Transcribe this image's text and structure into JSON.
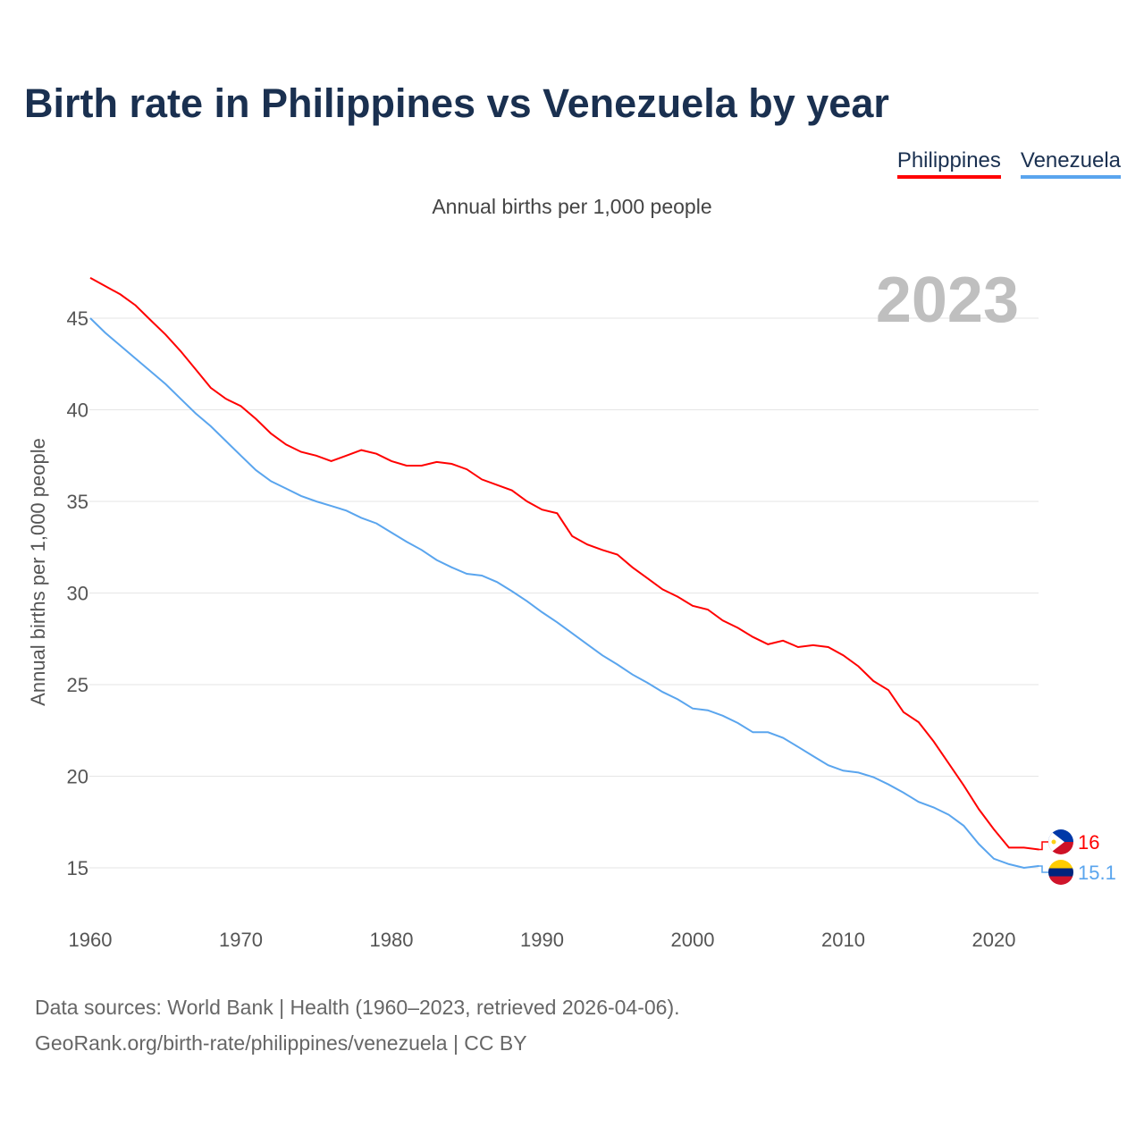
{
  "title": "Birth rate in Philippines vs Venezuela by year",
  "subtitle": "Annual births per 1,000 people",
  "legend": [
    {
      "label": "Philippines",
      "color": "#ff0000"
    },
    {
      "label": "Venezuela",
      "color": "#5aa5ee"
    }
  ],
  "year_watermark": "2023",
  "source_line1": "Data sources: World Bank | Health (1960–2023, retrieved 2026-04-06).",
  "source_line2": "GeoRank.org/birth-rate/philippines/venezuela | CC BY",
  "chart_data": {
    "type": "line",
    "title": "Birth rate in Philippines vs Venezuela by year",
    "ylabel": "Annual births per 1,000 people",
    "xlabel": "",
    "xlim": [
      1960,
      2023
    ],
    "ylim": [
      12.5,
      48
    ],
    "xticks": [
      1960,
      1970,
      1980,
      1990,
      2000,
      2010,
      2020
    ],
    "yticks": [
      15,
      20,
      25,
      30,
      35,
      40,
      45
    ],
    "grid": true,
    "legend_position": "top-right",
    "x": [
      1960,
      1961,
      1962,
      1963,
      1964,
      1965,
      1966,
      1967,
      1968,
      1969,
      1970,
      1971,
      1972,
      1973,
      1974,
      1975,
      1976,
      1977,
      1978,
      1979,
      1980,
      1981,
      1982,
      1983,
      1984,
      1985,
      1986,
      1987,
      1988,
      1989,
      1990,
      1991,
      1992,
      1993,
      1994,
      1995,
      1996,
      1997,
      1998,
      1999,
      2000,
      2001,
      2002,
      2003,
      2004,
      2005,
      2006,
      2007,
      2008,
      2009,
      2010,
      2011,
      2012,
      2013,
      2014,
      2015,
      2016,
      2017,
      2018,
      2019,
      2020,
      2021,
      2022,
      2023
    ],
    "series": [
      {
        "name": "Philippines",
        "color": "#ff0000",
        "end_label": "16",
        "flag": "philippines-flag",
        "values": [
          47.2,
          46.75,
          46.3,
          45.7,
          44.9,
          44.1,
          43.2,
          42.2,
          41.2,
          40.6,
          40.2,
          39.5,
          38.7,
          38.1,
          37.7,
          37.5,
          37.2,
          37.5,
          37.8,
          37.6,
          37.2,
          36.95,
          36.95,
          37.15,
          37.05,
          36.75,
          36.2,
          35.9,
          35.6,
          35.0,
          34.55,
          34.35,
          33.1,
          32.65,
          32.35,
          32.1,
          31.4,
          30.8,
          30.2,
          29.8,
          29.3,
          29.1,
          28.5,
          28.1,
          27.6,
          27.2,
          27.4,
          27.05,
          27.15,
          27.05,
          26.6,
          26.0,
          25.2,
          24.7,
          23.5,
          22.95,
          21.9,
          20.7,
          19.5,
          18.2,
          17.1,
          16.1,
          16.1,
          16.0
        ]
      },
      {
        "name": "Venezuela",
        "color": "#5aa5ee",
        "end_label": "15.1",
        "flag": "venezuela-flag",
        "values": [
          45.0,
          44.2,
          43.5,
          42.8,
          42.1,
          41.4,
          40.6,
          39.8,
          39.1,
          38.3,
          37.5,
          36.7,
          36.1,
          35.7,
          35.3,
          35.0,
          34.75,
          34.5,
          34.1,
          33.8,
          33.3,
          32.8,
          32.35,
          31.8,
          31.4,
          31.05,
          30.95,
          30.6,
          30.1,
          29.55,
          28.95,
          28.4,
          27.8,
          27.2,
          26.6,
          26.1,
          25.55,
          25.1,
          24.6,
          24.2,
          23.7,
          23.6,
          23.3,
          22.9,
          22.4,
          22.4,
          22.1,
          21.6,
          21.1,
          20.6,
          20.3,
          20.2,
          19.95,
          19.55,
          19.1,
          18.6,
          18.3,
          17.9,
          17.3,
          16.3,
          15.5,
          15.2,
          15.0,
          15.1
        ]
      }
    ]
  }
}
